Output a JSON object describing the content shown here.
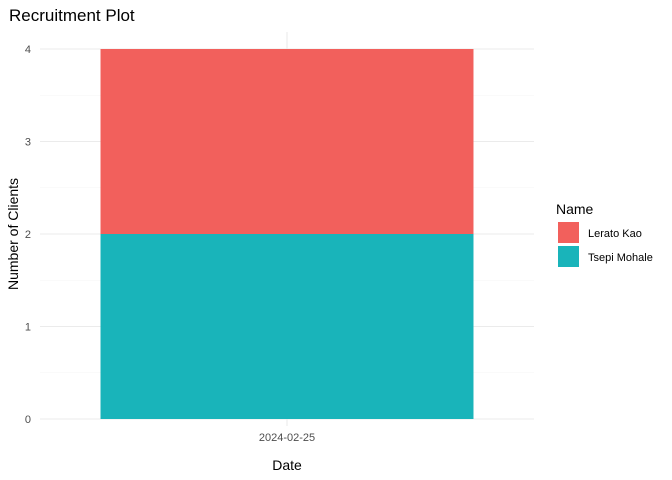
{
  "chart_data": {
    "type": "bar",
    "stacked": true,
    "title": "Recruitment Plot",
    "xlabel": "Date",
    "ylabel": "Number of Clients",
    "categories": [
      "2024-02-25"
    ],
    "series": [
      {
        "name": "Tsepi Mohale",
        "values": [
          2
        ],
        "color": "#19B4BA"
      },
      {
        "name": "Lerato Kao",
        "values": [
          2
        ],
        "color": "#F2605C"
      }
    ],
    "ylim": [
      0,
      4
    ],
    "yticks": [
      0,
      1,
      2,
      3,
      4
    ],
    "grid": true,
    "legend": {
      "title": "Name",
      "position": "right",
      "entries": [
        "Lerato Kao",
        "Tsepi Mohale"
      ]
    }
  }
}
